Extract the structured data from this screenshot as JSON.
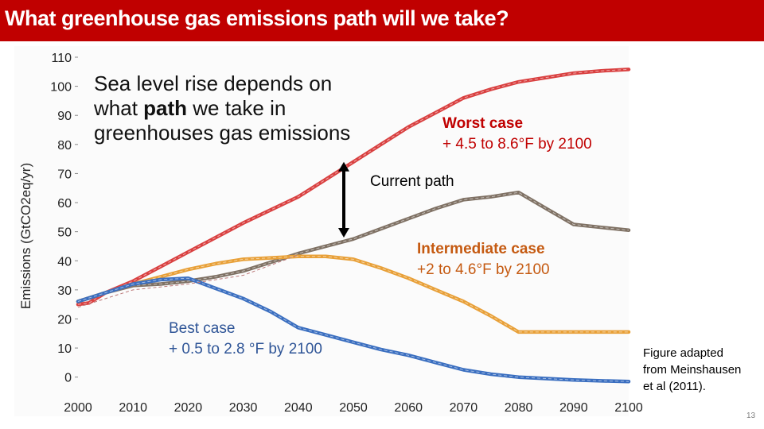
{
  "slide": {
    "title": "What greenhouse gas emissions path will we take?",
    "slide_number": "13",
    "title_bar_color": "#c00000"
  },
  "annotations": {
    "sea_level_line1": "Sea level rise depends on",
    "sea_level_line2_pre": "what ",
    "sea_level_line2_bold": "path",
    "sea_level_line2_post": " we take in",
    "sea_level_line3": "greenhouses gas emissions",
    "worst_case_label": "Worst case",
    "worst_case_range": "+ 4.5 to 8.6°F by 2100",
    "current_path_label": "Current path",
    "intermediate_case_label": "Intermediate case",
    "intermediate_case_range": "+2 to 4.6°F by 2100",
    "best_case_label": "Best case",
    "best_case_range": "+ 0.5 to 2.8 °F by 2100",
    "figure_credit": "Figure adapted from Meinshausen et al (2011)."
  },
  "chart_data": {
    "type": "line",
    "ylabel": "Emissions (GtCO2eq/yr)",
    "xlabel": "",
    "xlim": [
      2000,
      2100
    ],
    "ylim": [
      -2,
      110
    ],
    "x_ticks": [
      2000,
      2010,
      2020,
      2030,
      2040,
      2050,
      2060,
      2070,
      2080,
      2090,
      2100
    ],
    "y_ticks": [
      0,
      10,
      20,
      30,
      40,
      50,
      60,
      70,
      80,
      90,
      100,
      110
    ],
    "grid": false,
    "current_path_arrow": {
      "x": 2050,
      "y_from": 48,
      "y_to": 74
    },
    "series": [
      {
        "name": "Worst case",
        "color": "#d94040",
        "x": [
          2000,
          2002,
          2005,
          2010,
          2015,
          2020,
          2025,
          2030,
          2035,
          2040,
          2045,
          2050,
          2055,
          2060,
          2065,
          2070,
          2075,
          2080,
          2085,
          2090,
          2095,
          2100
        ],
        "values": [
          25,
          25.5,
          29,
          33,
          38,
          43,
          48,
          53,
          57.5,
          62,
          68,
          74,
          80,
          86,
          91,
          96,
          99,
          101.5,
          103,
          104.5,
          105.3,
          105.8
        ]
      },
      {
        "name": "Current path",
        "color": "#7f7164",
        "x": [
          2000,
          2005,
          2010,
          2015,
          2020,
          2025,
          2030,
          2035,
          2040,
          2045,
          2050,
          2055,
          2060,
          2065,
          2070,
          2075,
          2080,
          2085,
          2090,
          2095,
          2100
        ],
        "values": [
          26,
          29,
          31.5,
          32,
          33,
          34.5,
          36.5,
          39.5,
          42.5,
          45,
          47.5,
          51,
          54.5,
          58,
          61,
          62,
          63.5,
          58,
          52.5,
          51.5,
          50.5
        ]
      },
      {
        "name": "Intermediate case",
        "color": "#e8a038",
        "x": [
          2000,
          2005,
          2010,
          2015,
          2020,
          2025,
          2030,
          2035,
          2040,
          2045,
          2050,
          2055,
          2060,
          2065,
          2070,
          2075,
          2080,
          2085,
          2090,
          2095,
          2100
        ],
        "values": [
          26,
          29,
          32,
          34.5,
          37,
          39,
          40.5,
          41,
          41.5,
          41.5,
          40.5,
          37.5,
          34,
          30,
          26,
          21,
          15.5,
          15.5,
          15.5,
          15.5,
          15.5
        ]
      },
      {
        "name": "Best case",
        "color": "#3b6fc0",
        "x": [
          2000,
          2005,
          2010,
          2015,
          2020,
          2025,
          2030,
          2035,
          2040,
          2045,
          2050,
          2055,
          2060,
          2065,
          2070,
          2075,
          2080,
          2085,
          2090,
          2095,
          2100
        ],
        "values": [
          26,
          29,
          32,
          33.5,
          34,
          30.5,
          27,
          22.5,
          17,
          14.5,
          12,
          9.5,
          7.5,
          5,
          2.5,
          1,
          0,
          -0.5,
          -1,
          -1.3,
          -1.5
        ]
      }
    ]
  }
}
